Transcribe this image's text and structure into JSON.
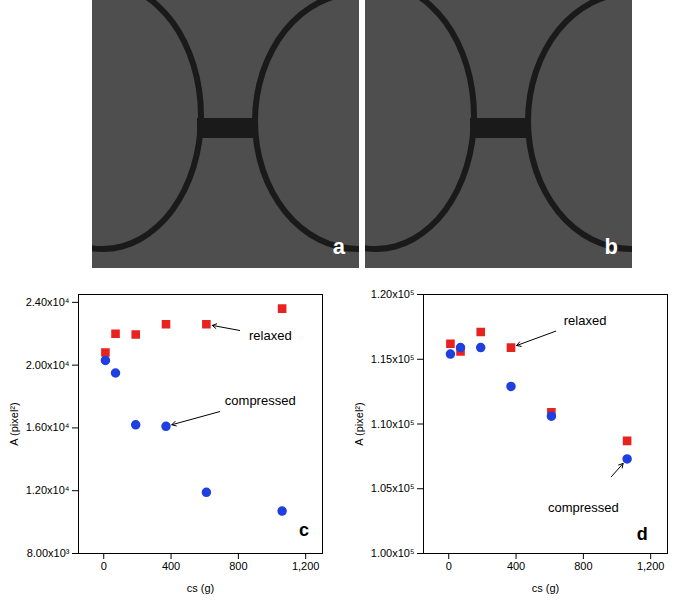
{
  "images": [
    {
      "label": "a"
    },
    {
      "label": "b"
    }
  ],
  "chart_data": [
    {
      "type": "scatter",
      "xlabel": "cs (g)",
      "ylabel": "A (pixel²)",
      "x": [
        10,
        70,
        190,
        370,
        610,
        1060
      ],
      "series": [
        {
          "color": "#e8231f",
          "marker": "square",
          "values": [
            20800,
            22000,
            21950,
            22600,
            22600,
            23600
          ]
        },
        {
          "color": "#1f3fe0",
          "marker": "circle",
          "values": [
            20300,
            19500,
            16200,
            16100,
            11900,
            10700
          ]
        }
      ],
      "xlim": [
        -150,
        1300
      ],
      "xticks": [
        0,
        400,
        800,
        {
          "value": 1200,
          "label": "1,200"
        }
      ],
      "ylim": [
        8000,
        24500
      ],
      "yticks": [
        {
          "value": 8000,
          "label": "8.00x10³"
        },
        {
          "value": 12000,
          "label": "1.20x10⁴"
        },
        {
          "value": 16000,
          "label": "1.60x10⁴"
        },
        {
          "value": 20000,
          "label": "2.00x10⁴"
        },
        {
          "value": 24000,
          "label": "2.40x10⁴"
        }
      ],
      "annotations": [
        {
          "text": "relaxed",
          "x": 990,
          "y": 21850,
          "arrow_x": 610,
          "arrow_y": 22600
        },
        {
          "text": "compressed",
          "x": 930,
          "y": 17750,
          "arrow_x": 370,
          "arrow_y": 16100
        },
        {
          "text": "c",
          "x": 1190,
          "y": 9500
        }
      ]
    },
    {
      "type": "scatter",
      "xlabel": "cs (g)",
      "ylabel": "A (pixel²)",
      "x": [
        10,
        70,
        190,
        370,
        610,
        1060
      ],
      "series": [
        {
          "color": "#e8231f",
          "marker": "square",
          "values": [
            116200,
            115600,
            117100,
            115900,
            110900,
            108700
          ]
        },
        {
          "color": "#1f3fe0",
          "marker": "circle",
          "values": [
            115400,
            115900,
            115900,
            112900,
            110600,
            107300
          ]
        }
      ],
      "xlim": [
        -150,
        1300
      ],
      "xticks": [
        0,
        400,
        800,
        {
          "value": 1200,
          "label": "1,200"
        }
      ],
      "ylim": [
        100000,
        120000
      ],
      "yticks": [
        {
          "value": 100000,
          "label": "1.00x10⁵"
        },
        {
          "value": 105000,
          "label": "1.05x10⁵"
        },
        {
          "value": 110000,
          "label": "1.10x10⁵"
        },
        {
          "value": 115000,
          "label": "1.15x10⁵"
        },
        {
          "value": 120000,
          "label": "1.20x10⁵"
        }
      ],
      "annotations": [
        {
          "text": "relaxed",
          "x": 810,
          "y": 118000,
          "arrow_x": 370,
          "arrow_y": 115900
        },
        {
          "text": "compressed",
          "x": 800,
          "y": 103500,
          "arrow_x": 1060,
          "arrow_y": 107300
        },
        {
          "text": "d",
          "x": 1150,
          "y": 101500
        }
      ]
    }
  ]
}
